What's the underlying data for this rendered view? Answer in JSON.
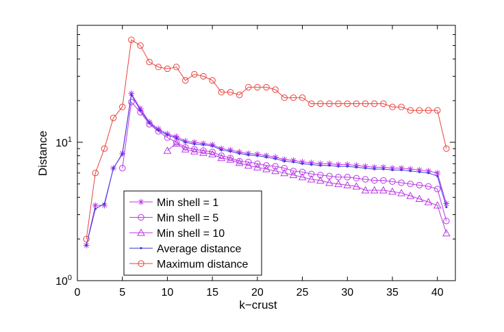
{
  "chart_data": {
    "type": "line",
    "xlabel": "k−crust",
    "ylabel": "Distance",
    "xlim": [
      0,
      42
    ],
    "ylim": [
      1,
      70
    ],
    "yscale": "log",
    "xticks": [
      0,
      5,
      10,
      15,
      20,
      25,
      30,
      35,
      40
    ],
    "yticks": [
      {
        "value": 1,
        "base": "10",
        "exp": "0"
      },
      {
        "value": 10,
        "base": "10",
        "exp": "1"
      }
    ],
    "grid": false,
    "legend_position": "lower-left",
    "series": [
      {
        "name": "Min shell = 1",
        "color": "#b833e6",
        "marker": "asterisk",
        "x": [
          1,
          2,
          3,
          4,
          5,
          6,
          7,
          8,
          9,
          10,
          11,
          12,
          13,
          14,
          15,
          16,
          17,
          18,
          19,
          20,
          21,
          22,
          23,
          24,
          25,
          26,
          27,
          28,
          29,
          30,
          31,
          32,
          33,
          34,
          35,
          36,
          37,
          38,
          39,
          40,
          41
        ],
        "values": [
          1.8,
          3.5,
          3.5,
          6.5,
          8.3,
          22.5,
          17.5,
          14,
          12.5,
          11.5,
          11,
          10.2,
          10,
          9.8,
          9.6,
          9,
          8.8,
          8.5,
          8.3,
          8.2,
          8,
          7.8,
          7.5,
          7.4,
          7.2,
          7.1,
          7,
          7,
          6.9,
          6.9,
          6.8,
          6.7,
          6.6,
          6.6,
          6.5,
          6.5,
          6.4,
          6.3,
          6.2,
          6,
          3.6
        ]
      },
      {
        "name": "Min shell = 5",
        "color": "#b833e6",
        "marker": "circle",
        "x": [
          5,
          6,
          7,
          8,
          9,
          10,
          11,
          12,
          13,
          14,
          15,
          16,
          17,
          18,
          19,
          20,
          21,
          22,
          23,
          24,
          25,
          26,
          27,
          28,
          29,
          30,
          31,
          32,
          33,
          34,
          35,
          36,
          37,
          38,
          39,
          40,
          41
        ],
        "values": [
          6.5,
          19.5,
          16.5,
          13.5,
          12,
          10.8,
          10,
          9.2,
          8.9,
          8.7,
          8.5,
          8,
          7.7,
          7.3,
          7.2,
          7,
          6.8,
          6.7,
          6.5,
          6.2,
          6.1,
          5.9,
          5.8,
          5.7,
          5.6,
          5.6,
          5.5,
          5.4,
          5.3,
          5.3,
          5.2,
          5.1,
          5,
          4.9,
          4.8,
          4.6,
          2.7
        ]
      },
      {
        "name": "Min shell = 10",
        "color": "#b833e6",
        "marker": "triangle",
        "x": [
          10,
          11,
          12,
          13,
          14,
          15,
          16,
          17,
          18,
          19,
          20,
          21,
          22,
          23,
          24,
          25,
          26,
          27,
          28,
          29,
          30,
          31,
          32,
          33,
          34,
          35,
          36,
          37,
          38,
          39,
          40,
          41
        ],
        "values": [
          8.7,
          9.8,
          8.9,
          8.6,
          8.4,
          8.2,
          7.7,
          7.5,
          7.1,
          6.8,
          6.6,
          6.4,
          6.2,
          6,
          5.8,
          5.6,
          5.4,
          5.3,
          5.1,
          5,
          4.9,
          4.8,
          4.5,
          4.5,
          4.5,
          4.4,
          4.3,
          4.1,
          3.9,
          3.7,
          3.5,
          2.2
        ]
      },
      {
        "name": "Average distance",
        "color": "#3b3bdf",
        "marker": "dot",
        "x": [
          1,
          2,
          3,
          4,
          5,
          6,
          7,
          8,
          9,
          10,
          11,
          12,
          13,
          14,
          15,
          16,
          17,
          18,
          19,
          20,
          21,
          22,
          23,
          24,
          25,
          26,
          27,
          28,
          29,
          30,
          31,
          32,
          33,
          34,
          35,
          36,
          37,
          38,
          39,
          40,
          41
        ],
        "values": [
          1.8,
          3.3,
          3.6,
          6.5,
          8.2,
          22,
          17,
          13.8,
          12.2,
          11.3,
          10.7,
          10,
          9.7,
          9.6,
          9.4,
          8.8,
          8.6,
          8.3,
          8.1,
          8,
          7.8,
          7.6,
          7.3,
          7.2,
          7,
          6.9,
          6.8,
          6.8,
          6.7,
          6.7,
          6.6,
          6.5,
          6.4,
          6.4,
          6.3,
          6.3,
          6.2,
          6.1,
          6,
          5.7,
          3.4
        ]
      },
      {
        "name": "Maximum distance",
        "color": "#e8403a",
        "marker": "circle",
        "x": [
          1,
          2,
          3,
          4,
          5,
          6,
          7,
          8,
          9,
          10,
          11,
          12,
          13,
          14,
          15,
          16,
          17,
          18,
          19,
          20,
          21,
          22,
          23,
          24,
          25,
          26,
          27,
          28,
          29,
          30,
          31,
          32,
          33,
          34,
          35,
          36,
          37,
          38,
          39,
          40,
          41
        ],
        "values": [
          2,
          6,
          9,
          15,
          18,
          55,
          50,
          38,
          35,
          34,
          35,
          28,
          31,
          30,
          28,
          23,
          23,
          22,
          25,
          25,
          25,
          24,
          21,
          21,
          21,
          19,
          19,
          19,
          19,
          19,
          19,
          19,
          19,
          19,
          18,
          18,
          17,
          17,
          17,
          17,
          9
        ]
      }
    ]
  }
}
